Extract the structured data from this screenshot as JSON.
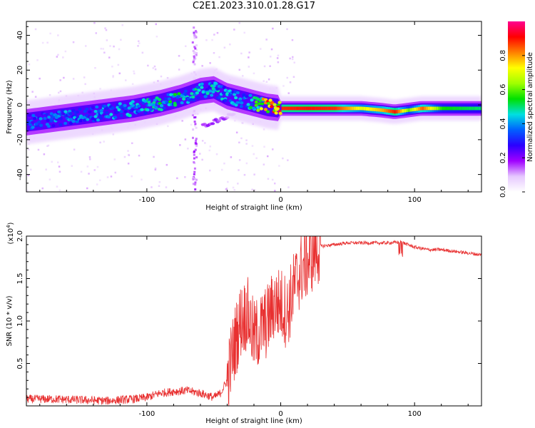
{
  "title": "C2E1.2023.310.01.28.G17",
  "chart_data": [
    {
      "type": "heatmap",
      "xlabel": "Height of straight line (km)",
      "ylabel": "Frequency (Hz)",
      "xlim": [
        -190,
        150
      ],
      "ylim": [
        -50,
        48
      ],
      "x_ticks": [
        -100,
        0,
        100
      ],
      "y_ticks": [
        -40,
        -20,
        0,
        20,
        40
      ],
      "colorbar": {
        "label": "Normalized spectral amplitude",
        "range": [
          0,
          1
        ],
        "ticks": [
          "0.0",
          "0.2",
          "0.4",
          "0.6",
          "0.8"
        ],
        "colors": [
          "#ffffff",
          "#e6c8ff",
          "#a000ff",
          "#2b00ff",
          "#0060ff",
          "#00e0e0",
          "#00e000",
          "#a0ff00",
          "#ffff00",
          "#ff8000",
          "#ff0000",
          "#ff0090"
        ]
      },
      "main_trace": [
        {
          "x": -190,
          "y": -10,
          "amp": 0.35
        },
        {
          "x": -170,
          "y": -8,
          "amp": 0.4
        },
        {
          "x": -150,
          "y": -6,
          "amp": 0.4
        },
        {
          "x": -130,
          "y": -4,
          "amp": 0.42
        },
        {
          "x": -110,
          "y": -2,
          "amp": 0.45
        },
        {
          "x": -90,
          "y": 1,
          "amp": 0.5
        },
        {
          "x": -75,
          "y": 4,
          "amp": 0.5
        },
        {
          "x": -60,
          "y": 8,
          "amp": 0.45
        },
        {
          "x": -50,
          "y": 9,
          "amp": 0.45
        },
        {
          "x": -40,
          "y": 5,
          "amp": 0.42
        },
        {
          "x": -30,
          "y": 3,
          "amp": 0.45
        },
        {
          "x": -20,
          "y": 1,
          "amp": 0.5
        },
        {
          "x": -10,
          "y": -1,
          "amp": 0.85
        },
        {
          "x": 0,
          "y": -2,
          "amp": 0.88
        },
        {
          "x": 20,
          "y": -2,
          "amp": 0.9
        },
        {
          "x": 40,
          "y": -2,
          "amp": 0.88
        },
        {
          "x": 60,
          "y": -2,
          "amp": 0.7
        },
        {
          "x": 75,
          "y": -3,
          "amp": 0.78
        },
        {
          "x": 85,
          "y": -4,
          "amp": 0.9
        },
        {
          "x": 95,
          "y": -3,
          "amp": 0.6
        },
        {
          "x": 105,
          "y": -2,
          "amp": 0.85
        },
        {
          "x": 120,
          "y": -2,
          "amp": 0.55
        },
        {
          "x": 150,
          "y": -2,
          "amp": 0.5
        }
      ]
    },
    {
      "type": "line",
      "xlabel": "Height of straight line (km)",
      "ylabel": "SNR (10 * v/v)",
      "y_multiplier": "(x10",
      "y_multiplier_exp": "4",
      "y_multiplier_close": ")",
      "xlim": [
        -190,
        150
      ],
      "ylim": [
        0,
        2.0
      ],
      "x_ticks": [
        -100,
        0,
        100
      ],
      "y_ticks": [
        "0.5",
        "1.0",
        "1.5",
        "2.0"
      ],
      "line_color": "#e83030",
      "series": [
        {
          "x": [
            -190,
            -170,
            -150,
            -130,
            -110,
            -100,
            -90,
            -80,
            -70,
            -60,
            -50,
            -45,
            -40,
            -35,
            -30,
            -25,
            -20,
            -15,
            -10,
            -5,
            0,
            5,
            10,
            15,
            20,
            25,
            30,
            40,
            50,
            60,
            70,
            80,
            90,
            100,
            110,
            120,
            130,
            140,
            150
          ],
          "values": [
            0.08,
            0.08,
            0.07,
            0.06,
            0.08,
            0.1,
            0.15,
            0.17,
            0.18,
            0.15,
            0.1,
            0.15,
            0.3,
            0.7,
            1.0,
            1.1,
            0.8,
            0.9,
            1.0,
            1.2,
            1.2,
            1.1,
            1.4,
            1.6,
            1.7,
            1.8,
            1.88,
            1.9,
            1.92,
            1.92,
            1.92,
            1.92,
            1.93,
            1.87,
            1.84,
            1.84,
            1.82,
            1.8,
            1.78
          ]
        }
      ]
    }
  ]
}
